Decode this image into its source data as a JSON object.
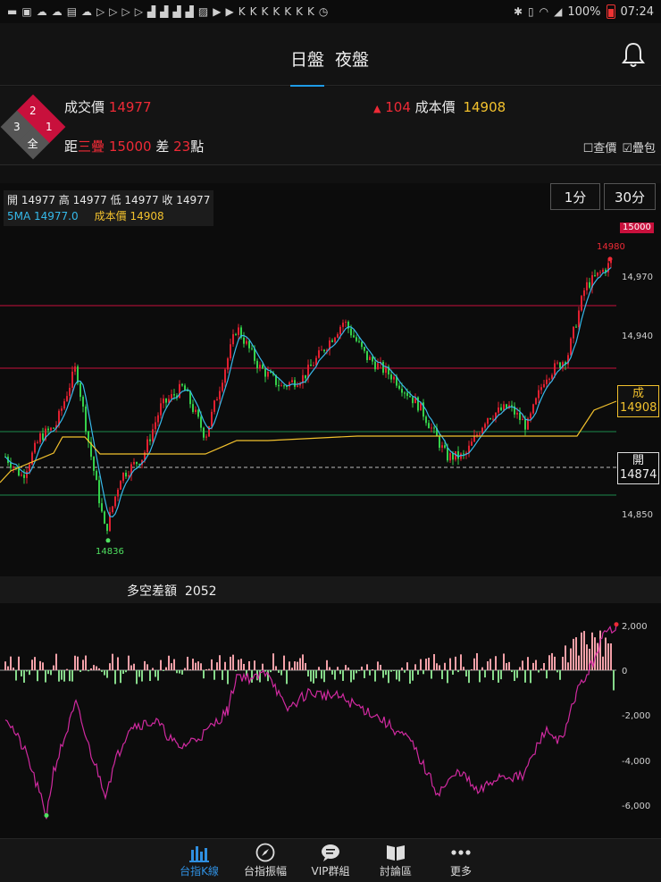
{
  "status_bar": {
    "left_icons": [
      "message-icon",
      "app-icon",
      "cloud-icon",
      "cloud-icon",
      "app-icon",
      "cloud-icon",
      "play-icon",
      "play-icon",
      "play-icon",
      "play-icon",
      "chart-icon",
      "chart-icon",
      "chart-icon",
      "chart-icon",
      "gallery-icon",
      "youtube-icon",
      "youtube-icon",
      "k-icon",
      "k-icon",
      "k-icon",
      "k-icon",
      "k-icon",
      "k-icon",
      "k-icon",
      "clock-icon"
    ],
    "battery": "100%",
    "time": "07:24"
  },
  "header": {
    "tabs": [
      {
        "label": "日盤",
        "active": true
      },
      {
        "label": "夜盤",
        "active": false
      }
    ],
    "bell_icon": "bell-icon"
  },
  "info": {
    "badges": {
      "top": "2",
      "left": "3",
      "right": "1",
      "bottom": "全"
    },
    "trade_price_label": "成交價",
    "trade_price_value": "14977",
    "change_arrow": "▲",
    "change_value": "104",
    "cost_label": "成本價",
    "cost_value": "14908",
    "dist_label": "距",
    "dist_name": "三疊",
    "dist_target": "15000",
    "diff_label": "差",
    "diff_value": "23",
    "diff_unit": "點",
    "check_price": "查價",
    "check_band": "疊包"
  },
  "chart": {
    "ohlc_line": "開 14977 高 14977 低 14977 收 14977",
    "ma_label": "5MA 14977.0",
    "cost_label": "成本價 14908",
    "periods": [
      "1分",
      "30分"
    ],
    "top_cut_label": "15000",
    "high_label": "14980",
    "low_label": "14836",
    "cost_tag_top": "成",
    "cost_tag_value": "14908",
    "open_tag_top": "開",
    "open_tag_value": "14874",
    "y_labels": [
      "14,970",
      "14,940",
      "14,850"
    ],
    "colors": {
      "up": "#e02030",
      "down": "#35d04a",
      "ma": "#38b8ea",
      "cost": "#f2c12d",
      "line_red": "#c8103c",
      "line_green": "#1d8a4c"
    }
  },
  "sub_chart": {
    "title": "多空差額",
    "value": "2052",
    "y_labels": [
      "2,000",
      "0",
      "-2,000",
      "-4,000",
      "-6,000"
    ],
    "colors": {
      "pos": "#f4a0a8",
      "neg": "#86d98a",
      "line": "#d02aa0"
    }
  },
  "nav": {
    "items": [
      {
        "label": "台指K線",
        "icon": "bar-chart-icon",
        "active": true
      },
      {
        "label": "台指振幅",
        "icon": "compass-icon",
        "active": false
      },
      {
        "label": "VIP群組",
        "icon": "chat-icon",
        "active": false
      },
      {
        "label": "討論區",
        "icon": "book-icon",
        "active": false
      },
      {
        "label": "更多",
        "icon": "more-icon",
        "active": false
      }
    ]
  }
}
